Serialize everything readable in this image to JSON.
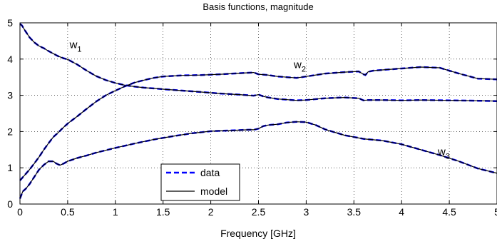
{
  "chart_data": {
    "type": "line",
    "title": "Basis functions, magnitude",
    "xlabel": "Frequency [GHz]",
    "ylabel": "",
    "xlim": [
      0,
      5
    ],
    "ylim": [
      0,
      5
    ],
    "xticks": [
      "0",
      "0.5",
      "1",
      "1.5",
      "2",
      "2.5",
      "3",
      "3.5",
      "4",
      "4.5",
      "5"
    ],
    "yticks": [
      "0",
      "1",
      "2",
      "3",
      "4",
      "5"
    ],
    "grid": true,
    "legend": {
      "position": "bottom-center",
      "entries": [
        {
          "label": "data",
          "style": "dashed",
          "color": "#0000ff"
        },
        {
          "label": "model",
          "style": "solid",
          "color": "#000000"
        }
      ]
    },
    "annotations": [
      {
        "base": "w",
        "sub": "1",
        "x": 0.52,
        "y": 4.3
      },
      {
        "base": "w",
        "sub": "2",
        "x": 2.87,
        "y": 3.75
      },
      {
        "base": "w",
        "sub": "3",
        "x": 4.38,
        "y": 1.35
      }
    ],
    "series": [
      {
        "x": [
          0,
          0.02,
          0.05,
          0.1,
          0.15,
          0.2,
          0.25,
          0.3,
          0.35,
          0.4,
          0.45,
          0.5,
          0.6,
          0.7,
          0.8,
          0.9,
          1.0,
          1.1,
          1.2,
          1.3,
          1.4,
          1.5,
          1.7,
          1.9,
          2.1,
          2.3,
          2.45,
          2.5,
          2.55,
          2.6,
          2.7,
          2.8,
          2.9,
          3.0,
          3.2,
          3.4,
          3.55,
          3.6,
          3.65,
          3.8,
          4.0,
          4.2,
          4.5,
          4.8,
          5.0
        ],
        "y": [
          4.97,
          4.93,
          4.8,
          4.6,
          4.46,
          4.36,
          4.3,
          4.22,
          4.15,
          4.08,
          4.03,
          3.99,
          3.85,
          3.68,
          3.53,
          3.42,
          3.34,
          3.28,
          3.24,
          3.21,
          3.19,
          3.17,
          3.13,
          3.09,
          3.05,
          3.02,
          2.99,
          3.02,
          2.97,
          2.94,
          2.9,
          2.88,
          2.86,
          2.87,
          2.92,
          2.94,
          2.92,
          2.86,
          2.87,
          2.87,
          2.86,
          2.87,
          2.86,
          2.85,
          2.84
        ]
      },
      {
        "x": [
          0,
          0.05,
          0.1,
          0.15,
          0.2,
          0.25,
          0.3,
          0.35,
          0.4,
          0.45,
          0.5,
          0.6,
          0.7,
          0.8,
          0.9,
          1.0,
          1.1,
          1.2,
          1.3,
          1.4,
          1.5,
          1.7,
          1.9,
          2.1,
          2.3,
          2.45,
          2.5,
          2.55,
          2.6,
          2.7,
          2.8,
          2.9,
          3.0,
          3.2,
          3.4,
          3.55,
          3.6,
          3.62,
          3.65,
          3.7,
          3.8,
          4.0,
          4.2,
          4.4,
          4.6,
          4.8,
          5.0
        ],
        "y": [
          0.65,
          0.8,
          0.95,
          1.12,
          1.3,
          1.5,
          1.68,
          1.85,
          1.97,
          2.1,
          2.22,
          2.42,
          2.63,
          2.83,
          3.0,
          3.13,
          3.25,
          3.35,
          3.42,
          3.48,
          3.52,
          3.55,
          3.56,
          3.58,
          3.61,
          3.63,
          3.58,
          3.57,
          3.56,
          3.52,
          3.5,
          3.48,
          3.52,
          3.6,
          3.64,
          3.66,
          3.58,
          3.56,
          3.65,
          3.68,
          3.7,
          3.74,
          3.78,
          3.76,
          3.6,
          3.46,
          3.44
        ]
      },
      {
        "x": [
          0,
          0.03,
          0.06,
          0.1,
          0.15,
          0.2,
          0.25,
          0.3,
          0.35,
          0.38,
          0.42,
          0.46,
          0.5,
          0.6,
          0.7,
          0.8,
          1.0,
          1.2,
          1.4,
          1.6,
          1.8,
          2.0,
          2.2,
          2.4,
          2.45,
          2.5,
          2.55,
          2.6,
          2.7,
          2.8,
          2.9,
          3.0,
          3.1,
          3.2,
          3.4,
          3.6,
          3.8,
          4.0,
          4.2,
          4.4,
          4.6,
          4.8,
          5.0
        ],
        "y": [
          0.15,
          0.35,
          0.42,
          0.55,
          0.75,
          0.95,
          1.08,
          1.18,
          1.18,
          1.12,
          1.07,
          1.12,
          1.18,
          1.27,
          1.34,
          1.42,
          1.55,
          1.67,
          1.78,
          1.87,
          1.95,
          2.01,
          2.03,
          2.05,
          2.05,
          2.08,
          2.15,
          2.18,
          2.2,
          2.25,
          2.27,
          2.26,
          2.18,
          2.06,
          1.9,
          1.8,
          1.75,
          1.65,
          1.5,
          1.35,
          1.18,
          0.98,
          0.85
        ]
      }
    ]
  }
}
